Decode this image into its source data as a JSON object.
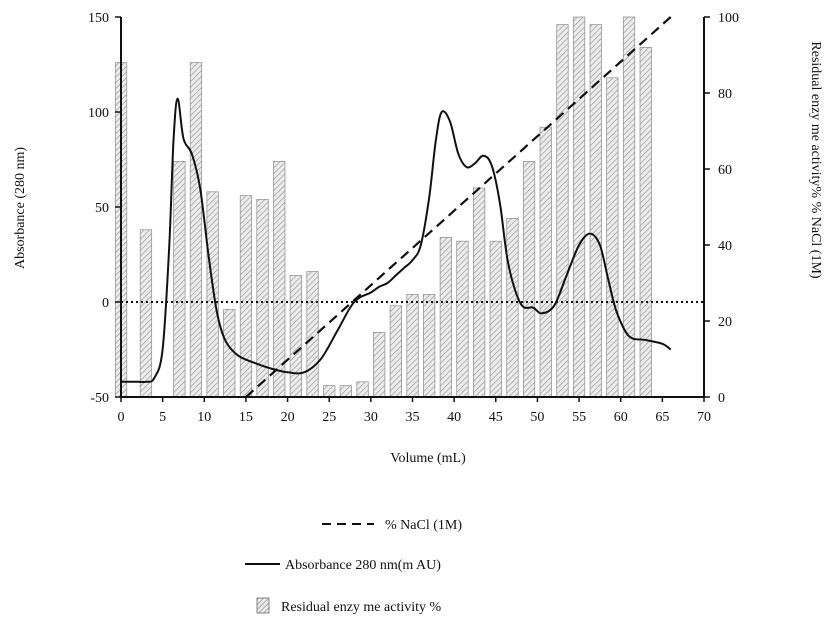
{
  "chart_data": {
    "type": "bar",
    "xlabel": "Volume (mL)",
    "ylabel_left": "Absorbance (280 nm)",
    "ylabel_right": "Residual enzy me activity% % NaCl (1M)",
    "x_ticks": [
      "0",
      "5",
      "10",
      "15",
      "20",
      "25",
      "30",
      "35",
      "40",
      "45",
      "50",
      "55",
      "60",
      "65",
      "70"
    ],
    "y_left_ticks": [
      "150",
      "100",
      "50",
      "0",
      "-50"
    ],
    "y_right_ticks": [
      "100",
      "80",
      "60",
      "40",
      "20",
      "0"
    ],
    "xlim": [
      0,
      70
    ],
    "ylim_left": [
      -50,
      150
    ],
    "ylim_right": [
      0,
      100
    ],
    "reference_line": {
      "axis": "left",
      "y": 0,
      "style": "dotted"
    },
    "legend": {
      "placement": "bottom-center",
      "nacl": "% NaCl (1M)",
      "absorbance": "Absorbance 280 nm(m AU)",
      "activity": "Residual enzy me activity %"
    },
    "series": [
      {
        "name": "Residual enzy me activity %",
        "kind": "bar",
        "axis": "right",
        "x": [
          0,
          3,
          7,
          9,
          11,
          13,
          15,
          17,
          19,
          21,
          23,
          25,
          27,
          29,
          31,
          33,
          35,
          37,
          39,
          41,
          43,
          45,
          47,
          49,
          51,
          53,
          55,
          57,
          59,
          61,
          63
        ],
        "values": [
          88,
          44,
          62,
          88,
          54,
          23,
          53,
          52,
          62,
          32,
          33,
          3,
          3,
          4,
          17,
          24,
          27,
          27,
          42,
          41,
          55,
          41,
          47,
          62,
          71,
          98,
          100,
          98,
          84,
          100,
          92
        ]
      },
      {
        "name": "Absorbance 280 nm(m AU)",
        "kind": "line",
        "axis": "left",
        "x": [
          0,
          2,
          3,
          4,
          5,
          5.8,
          6.3,
          6.8,
          7.5,
          8.5,
          9.5,
          10.5,
          11.5,
          12.5,
          14,
          16,
          18,
          20,
          22,
          24,
          26,
          28,
          30,
          31,
          32,
          33,
          34,
          35,
          36,
          37,
          37.8,
          38.5,
          39.5,
          40.5,
          41.5,
          42.5,
          43.5,
          44.5,
          45.5,
          46.5,
          48,
          49.5,
          50.5,
          52,
          53.5,
          55,
          56.3,
          57.5,
          58.5,
          59.5,
          61,
          63,
          65,
          66
        ],
        "values": [
          -42,
          -42,
          -42,
          -40,
          -25,
          30,
          85,
          107,
          86,
          78,
          60,
          25,
          -5,
          -20,
          -28,
          -32,
          -35,
          -37,
          -37,
          -30,
          -15,
          0,
          5,
          8,
          10,
          14,
          18,
          22,
          30,
          55,
          85,
          100,
          95,
          78,
          71,
          73,
          77,
          72,
          52,
          20,
          -1,
          -3,
          -6,
          -2,
          14,
          30,
          36,
          30,
          12,
          -5,
          -18,
          -20,
          -22,
          -25
        ]
      },
      {
        "name": "% NaCl (1M)",
        "kind": "line",
        "axis": "right",
        "style": "dashed",
        "x": [
          15,
          66
        ],
        "values": [
          0,
          100
        ]
      }
    ]
  }
}
